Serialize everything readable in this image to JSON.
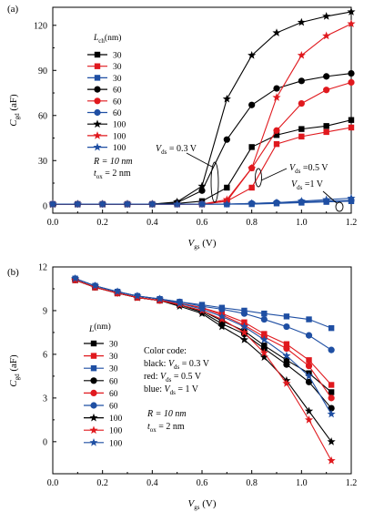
{
  "chart_data": [
    {
      "panel": "(a)",
      "type": "line",
      "xlabel": "V",
      "xlabel_sub": "gs",
      "xlabel_unit": " (V)",
      "ylabel": "C",
      "ylabel_sub": "gd",
      "ylabel_unit": " (aF)",
      "xlim": [
        0.0,
        1.2
      ],
      "ylim": [
        -5,
        132
      ],
      "xticks": [
        "0.0",
        "0.2",
        "0.4",
        "0.6",
        "0.8",
        "1.0",
        "1.2"
      ],
      "yticks": [
        "0",
        "30",
        "60",
        "90",
        "120"
      ],
      "legend_title": "L",
      "legend_title_sub": "ch",
      "legend_title_unit": "(nm)",
      "legend_position": "top-left",
      "series": [
        {
          "name": "30",
          "color": "#000000",
          "marker": "square",
          "x": [
            0.0,
            0.1,
            0.2,
            0.3,
            0.4,
            0.5,
            0.6,
            0.7,
            0.8,
            0.9,
            1.0,
            1.1,
            1.2
          ],
          "y": [
            1,
            1,
            1,
            1,
            1,
            1.5,
            3,
            12,
            39,
            47,
            51,
            53,
            57
          ]
        },
        {
          "name": "30",
          "color": "#e0191e",
          "marker": "square",
          "x": [
            0.0,
            0.1,
            0.2,
            0.3,
            0.4,
            0.5,
            0.6,
            0.7,
            0.8,
            0.9,
            1.0,
            1.1,
            1.2
          ],
          "y": [
            1,
            1,
            1,
            1,
            1,
            1,
            1,
            3,
            12,
            41,
            46,
            49,
            52
          ]
        },
        {
          "name": "30",
          "color": "#1f4fa3",
          "marker": "square",
          "x": [
            0.0,
            0.1,
            0.2,
            0.3,
            0.4,
            0.5,
            0.6,
            0.7,
            0.8,
            0.9,
            1.0,
            1.1,
            1.2
          ],
          "y": [
            1,
            1,
            1,
            1,
            1,
            1,
            1,
            1,
            1,
            1.5,
            2,
            2.5,
            3
          ]
        },
        {
          "name": "60",
          "color": "#000000",
          "marker": "circle",
          "x": [
            0.0,
            0.1,
            0.2,
            0.3,
            0.4,
            0.5,
            0.6,
            0.7,
            0.8,
            0.9,
            1.0,
            1.1,
            1.2
          ],
          "y": [
            1,
            1,
            1,
            1,
            1,
            2,
            10,
            44,
            67,
            78,
            83,
            86,
            88
          ]
        },
        {
          "name": "60",
          "color": "#e0191e",
          "marker": "circle",
          "x": [
            0.0,
            0.1,
            0.2,
            0.3,
            0.4,
            0.5,
            0.6,
            0.7,
            0.8,
            0.9,
            1.0,
            1.1,
            1.2
          ],
          "y": [
            1,
            1,
            1,
            1,
            1,
            1,
            1,
            3,
            25,
            50,
            68,
            77,
            82
          ]
        },
        {
          "name": "60",
          "color": "#1f4fa3",
          "marker": "circle",
          "x": [
            0.0,
            0.1,
            0.2,
            0.3,
            0.4,
            0.5,
            0.6,
            0.7,
            0.8,
            0.9,
            1.0,
            1.1,
            1.2
          ],
          "y": [
            1,
            1,
            1,
            1,
            1,
            1,
            1,
            1,
            1.5,
            2,
            2.5,
            3,
            3.5
          ]
        },
        {
          "name": "100",
          "color": "#000000",
          "marker": "star",
          "x": [
            0.0,
            0.1,
            0.2,
            0.3,
            0.4,
            0.5,
            0.6,
            0.7,
            0.8,
            0.9,
            1.0,
            1.1,
            1.2
          ],
          "y": [
            1,
            1,
            1,
            1,
            1,
            2.5,
            13,
            71,
            100,
            115,
            122,
            126,
            129
          ]
        },
        {
          "name": "100",
          "color": "#e0191e",
          "marker": "star",
          "x": [
            0.0,
            0.1,
            0.2,
            0.3,
            0.4,
            0.5,
            0.6,
            0.7,
            0.8,
            0.9,
            1.0,
            1.1,
            1.2
          ],
          "y": [
            1,
            1,
            1,
            1,
            1,
            1,
            1,
            4,
            25,
            72,
            100,
            113,
            121
          ]
        },
        {
          "name": "100",
          "color": "#1f4fa3",
          "marker": "star",
          "x": [
            0.0,
            0.1,
            0.2,
            0.3,
            0.4,
            0.5,
            0.6,
            0.7,
            0.8,
            0.9,
            1.0,
            1.1,
            1.2
          ],
          "y": [
            1,
            1,
            1,
            1,
            1,
            1,
            1,
            1,
            1.5,
            2,
            3,
            4,
            5
          ]
        }
      ],
      "annotations": {
        "params_line1": "R = 10 nm",
        "params_line2_prefix": "t",
        "params_line2_sub": "ox",
        "params_line2_suffix": " = 2 nm",
        "vds1_prefix": "V",
        "vds1_sub": "ds",
        "vds1_suffix": " = 0.3 V",
        "vds2_prefix": "V",
        "vds2_sub": "ds",
        "vds2_suffix": " =0.5 V",
        "vds3_prefix": "V",
        "vds3_sub": "ds",
        "vds3_suffix": " =1 V"
      }
    },
    {
      "panel": "(b)",
      "type": "line",
      "xlabel": "V",
      "xlabel_sub": "gs",
      "xlabel_unit": " (V)",
      "ylabel": "C",
      "ylabel_sub": "gd",
      "ylabel_unit": " (aF)",
      "xlim": [
        0.0,
        1.2
      ],
      "ylim": [
        -2.2,
        12
      ],
      "xticks": [
        "0.0",
        "0.2",
        "0.4",
        "0.6",
        "0.8",
        "1.0",
        "1.2"
      ],
      "yticks": [
        "0",
        "3",
        "6",
        "9",
        "12"
      ],
      "legend_title": "L",
      "legend_title_sub": "",
      "legend_title_unit": "(nm)",
      "legend_position": "left",
      "series": [
        {
          "name": "30",
          "color": "#000000",
          "marker": "square",
          "x": [
            0.09,
            0.17,
            0.26,
            0.34,
            0.43,
            0.51,
            0.6,
            0.68,
            0.77,
            0.85,
            0.94,
            1.03,
            1.12
          ],
          "y": [
            11.1,
            10.6,
            10.2,
            9.9,
            9.7,
            9.4,
            9.0,
            8.3,
            7.6,
            6.6,
            5.6,
            4.7,
            3.4
          ]
        },
        {
          "name": "30",
          "color": "#e0191e",
          "marker": "square",
          "x": [
            0.09,
            0.17,
            0.26,
            0.34,
            0.43,
            0.51,
            0.6,
            0.68,
            0.77,
            0.85,
            0.94,
            1.03,
            1.12
          ],
          "y": [
            11.1,
            10.6,
            10.2,
            9.9,
            9.7,
            9.5,
            9.2,
            8.8,
            8.2,
            7.4,
            6.7,
            5.6,
            3.9
          ]
        },
        {
          "name": "30",
          "color": "#1f4fa3",
          "marker": "square",
          "x": [
            0.09,
            0.17,
            0.26,
            0.34,
            0.43,
            0.51,
            0.6,
            0.68,
            0.77,
            0.85,
            0.94,
            1.03,
            1.12
          ],
          "y": [
            11.2,
            10.7,
            10.3,
            10.0,
            9.8,
            9.6,
            9.4,
            9.2,
            9.0,
            8.8,
            8.6,
            8.4,
            7.8
          ]
        },
        {
          "name": "60",
          "color": "#000000",
          "marker": "circle",
          "x": [
            0.09,
            0.17,
            0.26,
            0.34,
            0.43,
            0.51,
            0.6,
            0.68,
            0.77,
            0.85,
            0.94,
            1.03,
            1.12
          ],
          "y": [
            11.1,
            10.6,
            10.2,
            9.9,
            9.7,
            9.4,
            8.9,
            8.1,
            7.4,
            6.4,
            5.3,
            4.1,
            2.3
          ]
        },
        {
          "name": "60",
          "color": "#e0191e",
          "marker": "circle",
          "x": [
            0.09,
            0.17,
            0.26,
            0.34,
            0.43,
            0.51,
            0.6,
            0.68,
            0.77,
            0.85,
            0.94,
            1.03,
            1.12
          ],
          "y": [
            11.1,
            10.6,
            10.2,
            9.9,
            9.7,
            9.5,
            9.2,
            8.7,
            8.0,
            7.2,
            6.4,
            5.2,
            3.0
          ]
        },
        {
          "name": "60",
          "color": "#1f4fa3",
          "marker": "circle",
          "x": [
            0.09,
            0.17,
            0.26,
            0.34,
            0.43,
            0.51,
            0.6,
            0.68,
            0.77,
            0.85,
            0.94,
            1.03,
            1.12
          ],
          "y": [
            11.2,
            10.7,
            10.3,
            10.0,
            9.8,
            9.6,
            9.3,
            9.1,
            8.8,
            8.4,
            7.9,
            7.3,
            6.3
          ]
        },
        {
          "name": "100",
          "color": "#000000",
          "marker": "star",
          "x": [
            0.09,
            0.17,
            0.26,
            0.34,
            0.43,
            0.51,
            0.6,
            0.68,
            0.77,
            0.85,
            0.94,
            1.03,
            1.12
          ],
          "y": [
            11.1,
            10.6,
            10.2,
            9.9,
            9.7,
            9.3,
            8.8,
            7.9,
            7.0,
            5.8,
            4.2,
            2.1,
            0.0
          ]
        },
        {
          "name": "100",
          "color": "#e0191e",
          "marker": "star",
          "x": [
            0.09,
            0.17,
            0.26,
            0.34,
            0.43,
            0.51,
            0.6,
            0.68,
            0.77,
            0.85,
            0.94,
            1.03,
            1.12
          ],
          "y": [
            11.1,
            10.6,
            10.2,
            9.9,
            9.7,
            9.4,
            9.0,
            8.4,
            7.5,
            6.1,
            4.0,
            1.5,
            -1.3
          ]
        },
        {
          "name": "100",
          "color": "#1f4fa3",
          "marker": "star",
          "x": [
            0.09,
            0.17,
            0.26,
            0.34,
            0.43,
            0.51,
            0.6,
            0.68,
            0.77,
            0.85,
            0.94,
            1.03,
            1.12
          ],
          "y": [
            11.2,
            10.7,
            10.3,
            10.0,
            9.8,
            9.5,
            9.1,
            8.6,
            7.9,
            7.0,
            5.9,
            4.5,
            1.9
          ]
        }
      ],
      "annotations": {
        "color_code_title": "Color code:",
        "cc1_prefix": "black: ",
        "cc1_var": "V",
        "cc1_sub": "ds",
        "cc1_suffix": " = 0.3 V",
        "cc2_prefix": "red: ",
        "cc2_var": "V",
        "cc2_sub": "ds",
        "cc2_suffix": " = 0.5 V",
        "cc3_prefix": "blue: ",
        "cc3_var": "V",
        "cc3_sub": "ds",
        "cc3_suffix": " = 1 V",
        "params_line1": "R = 10 nm",
        "params_line2_prefix": "t",
        "params_line2_sub": "ox",
        "params_line2_suffix": " = 2 nm"
      }
    }
  ]
}
